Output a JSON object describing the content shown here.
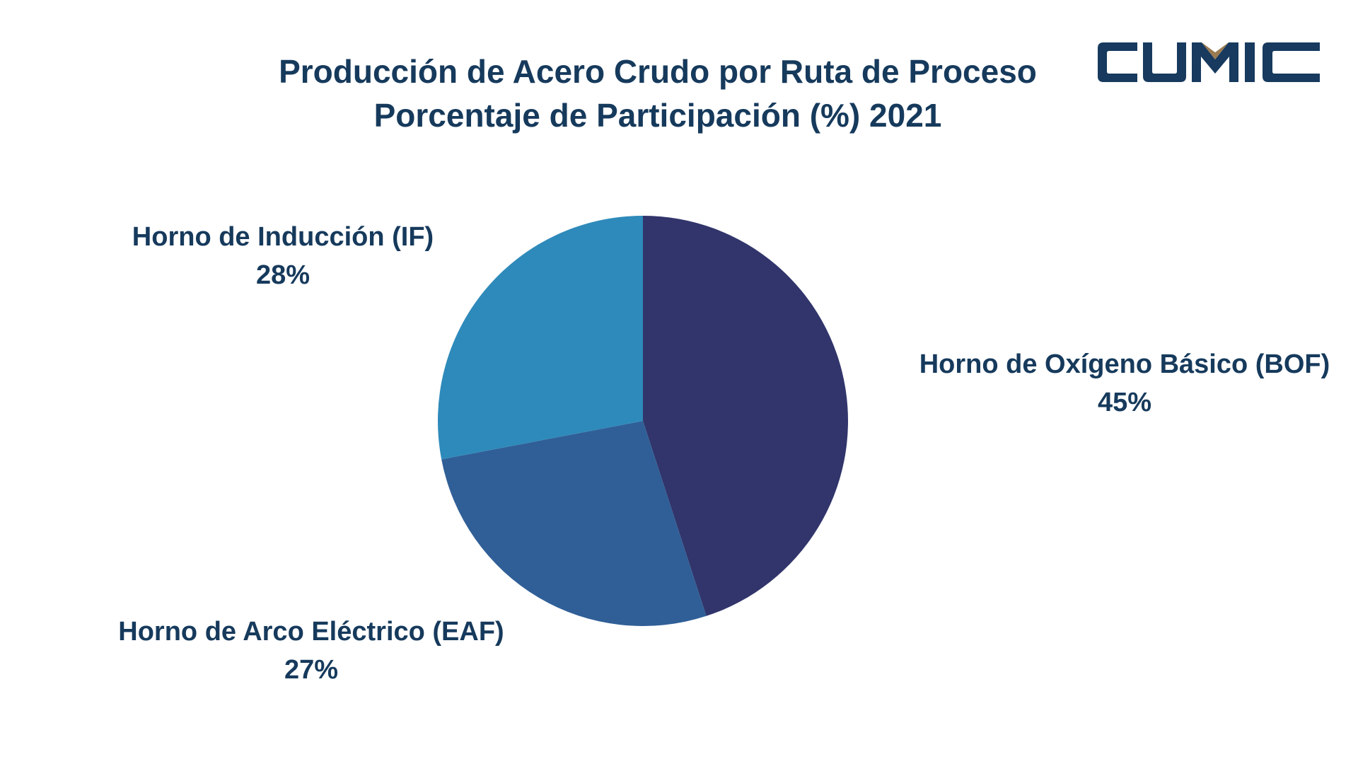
{
  "chart_data": {
    "type": "pie",
    "title": "Producción de Acero Crudo por Ruta de Proceso",
    "subtitle": "Porcentaje de Participación (%) 2021",
    "slices": [
      {
        "label": "Horno de Oxígeno Básico (BOF)",
        "value": 45,
        "value_label": "45%",
        "color": "#31356b"
      },
      {
        "label": "Horno de Arco Eléctrico (EAF)",
        "value": 27,
        "value_label": "27%",
        "color": "#305f97"
      },
      {
        "label": "Horno de Inducción (IF)",
        "value": 28,
        "value_label": "28%",
        "color": "#2e8aba"
      }
    ],
    "start_angle": "12 o'clock",
    "direction": "clockwise",
    "legend": "none"
  },
  "branding": {
    "logo_text": "CUMIC",
    "logo_color": "#173a5e",
    "logo_accent_color": "#9b7b52"
  }
}
